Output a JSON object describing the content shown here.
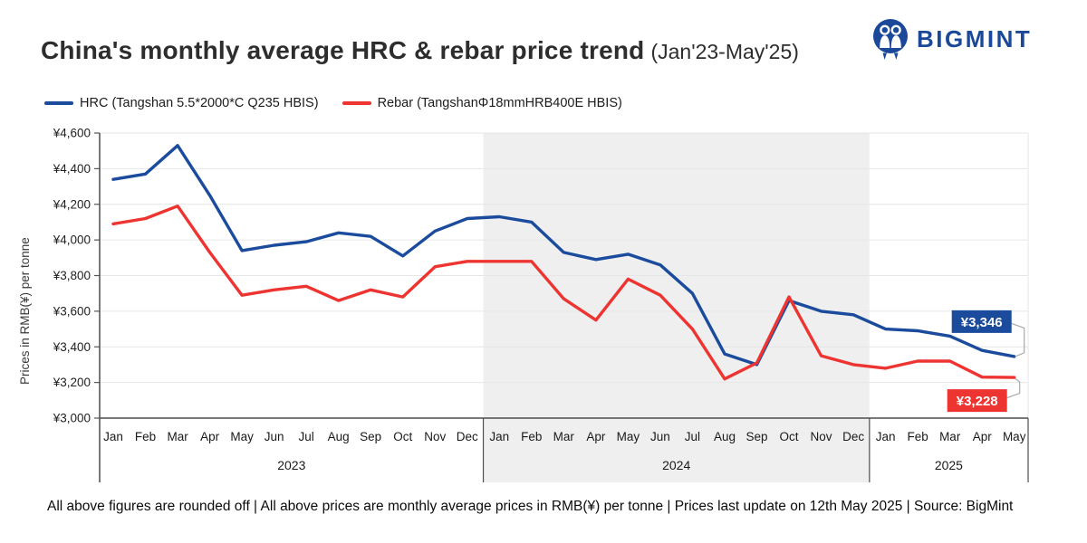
{
  "header": {
    "title": "China's monthly average HRC & rebar price trend",
    "title_range": "(Jan'23-May'25)",
    "brand": "BIGMINT",
    "brand_color": "#1c4899"
  },
  "legend": [
    {
      "label": "HRC (Tangshan 5.5*2000*C Q235 HBIS)",
      "color": "#1b4b9d"
    },
    {
      "label": "Rebar (TangshanΦ18mmHRB400E HBIS)",
      "color": "#ee3431"
    }
  ],
  "chart_data": {
    "type": "line",
    "title": "China's monthly average HRC & rebar price trend (Jan'23-May'25)",
    "ylabel": "Prices in RMB(¥) per tonne",
    "ylim": [
      3000,
      4600
    ],
    "grid": "horizontal",
    "legend_position": "top-left",
    "band_color": "#efefef",
    "yticks": [
      4600,
      4400,
      4200,
      4000,
      3800,
      3600,
      3400,
      3200,
      3000
    ],
    "ytick_labels": [
      "¥4,600",
      "¥4,400",
      "¥4,200",
      "¥4,000",
      "¥3,800",
      "¥3,600",
      "¥3,400",
      "¥3,200",
      "¥3,000"
    ],
    "categories": [
      "Jan",
      "Feb",
      "Mar",
      "Apr",
      "May",
      "Jun",
      "Jul",
      "Aug",
      "Sep",
      "Oct",
      "Nov",
      "Dec",
      "Jan",
      "Feb",
      "Mar",
      "Apr",
      "May",
      "Jun",
      "Jul",
      "Aug",
      "Sep",
      "Oct",
      "Nov",
      "Dec",
      "Jan",
      "Feb",
      "Mar",
      "Apr",
      "May"
    ],
    "year_groups": [
      {
        "year": "2023",
        "months": 12,
        "shaded": false
      },
      {
        "year": "2024",
        "months": 12,
        "shaded": true
      },
      {
        "year": "2025",
        "months": 5,
        "shaded": false
      }
    ],
    "series": [
      {
        "id": "hrc",
        "name": "HRC (Tangshan 5.5*2000*C Q235 HBIS)",
        "color": "#1b4b9d",
        "end_label": "¥3,346",
        "label_position": "above",
        "values": [
          4340,
          4370,
          4530,
          4250,
          3940,
          3970,
          3990,
          4040,
          4020,
          3910,
          4050,
          4120,
          4130,
          4100,
          3930,
          3890,
          3920,
          3860,
          3700,
          3360,
          3300,
          3660,
          3600,
          3580,
          3500,
          3490,
          3460,
          3380,
          3346
        ]
      },
      {
        "id": "rebar",
        "name": "Rebar (TangshanΦ18mmHRB400E HBIS)",
        "color": "#ee3431",
        "end_label": "¥3,228",
        "label_position": "below",
        "values": [
          4090,
          4120,
          4190,
          3930,
          3690,
          3720,
          3740,
          3660,
          3720,
          3680,
          3850,
          3880,
          3880,
          3880,
          3670,
          3550,
          3780,
          3690,
          3500,
          3220,
          3310,
          3680,
          3350,
          3300,
          3280,
          3320,
          3320,
          3230,
          3228
        ]
      }
    ]
  },
  "footer": {
    "note": "All above figures are rounded off | All above prices are monthly average prices in RMB(¥) per tonne | Prices last update on 12th May 2025 | Source: BigMint"
  }
}
